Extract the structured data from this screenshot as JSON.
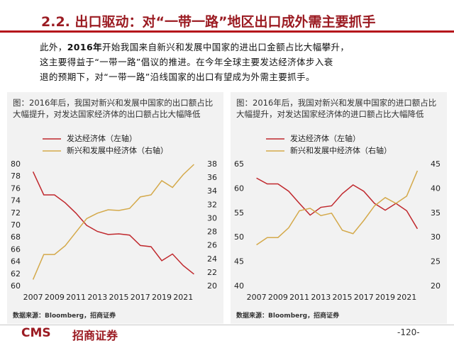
{
  "header": {
    "title": "2.2. 出口驱动：对“一带一路”地区出口成外需主要抓手"
  },
  "body": {
    "lead": [
      "此外，",
      "2016年",
      "开始我国来自新兴和发展中国家的进出口金额占比大幅攀升，"
    ],
    "lines": [
      "这主要得益于“一带一路”倡议的推进。在今年全球主要发达经济体步入衰",
      "退的预期下，对“一带一路”沿线国家的出口有望成为外需主要抓手。"
    ]
  },
  "chart_data": [
    {
      "type": "line",
      "title": "图：2016年后，我国对新兴和发展中国家的出口额占比大幅提升，对发达国家经济体的出口额占比大幅降低",
      "x": [
        2007,
        2008,
        2009,
        2010,
        2011,
        2012,
        2013,
        2014,
        2015,
        2016,
        2017,
        2018,
        2019,
        2020,
        2021,
        2022
      ],
      "xlim": [
        2006.3,
        2022.7
      ],
      "xticks": [
        2007,
        2009,
        2011,
        2013,
        2015,
        2017,
        2019,
        2021
      ],
      "ylim": [
        60,
        80
      ],
      "yticks": [
        60,
        62,
        64,
        66,
        68,
        70,
        72,
        74,
        76,
        78,
        80
      ],
      "y2lim": [
        20,
        38
      ],
      "y2ticks": [
        20,
        22,
        24,
        26,
        28,
        30,
        32,
        34,
        36,
        38
      ],
      "series": [
        {
          "name": "发达经济体（左轴）",
          "color": "#c0282d",
          "values": [
            78.8,
            75,
            75,
            73.7,
            72,
            70,
            69,
            68.5,
            68.6,
            68.4,
            66.7,
            66.5,
            64.2,
            65.3,
            63.4,
            62
          ]
        },
        {
          "name": "新兴和发展中经济体（右轴）",
          "color": "#d4a94a",
          "axis": "y2",
          "values": [
            21,
            24.7,
            24.7,
            26,
            28,
            30,
            30.8,
            31.3,
            31.2,
            31.5,
            33.2,
            33.5,
            35.6,
            34.6,
            36.5,
            38
          ]
        }
      ],
      "source": "数据来源：Bloomberg，招商证券"
    },
    {
      "type": "line",
      "title": "图：2016年后，我国对新兴和发展中国家的进口额占比大幅提升，对发达国家经济体的进口额占比大幅降低",
      "x": [
        2007,
        2008,
        2009,
        2010,
        2011,
        2012,
        2013,
        2014,
        2015,
        2016,
        2017,
        2018,
        2019,
        2020,
        2021,
        2022
      ],
      "xlim": [
        2006.3,
        2022.7
      ],
      "xticks": [
        2007,
        2009,
        2011,
        2013,
        2015,
        2017,
        2019,
        2021
      ],
      "ylim": [
        40,
        65
      ],
      "yticks": [
        40,
        45,
        50,
        55,
        60,
        65
      ],
      "y2lim": [
        20,
        45
      ],
      "y2ticks": [
        20,
        25,
        30,
        35,
        40,
        45
      ],
      "series": [
        {
          "name": "发达经济体（左轴）",
          "color": "#c0282d",
          "values": [
            62.2,
            61,
            61,
            59.5,
            57,
            54.6,
            56.2,
            56.5,
            59,
            60.8,
            59.5,
            57,
            55.6,
            57,
            55.5,
            51.8
          ]
        },
        {
          "name": "新兴和发展中经济体（右轴）",
          "color": "#d4a94a",
          "axis": "y2",
          "values": [
            28.5,
            30,
            30,
            32,
            35.5,
            36,
            34.5,
            35,
            31.5,
            30.8,
            33.5,
            36.5,
            38.2,
            37,
            38.5,
            43.7
          ]
        }
      ],
      "source": "数据来源：Bloomberg，招商证券"
    }
  ],
  "footer": {
    "logo": "CMS",
    "company": "招商证券",
    "page": "-120-"
  }
}
